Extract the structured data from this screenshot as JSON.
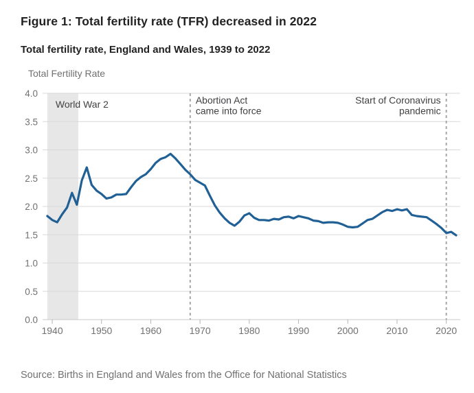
{
  "page": {
    "title": "Figure 1: Total fertility rate (TFR) decreased in 2022",
    "subtitle": "Total fertility rate, England and Wales, 1939 to 2022",
    "source": "Source: Births in England and Wales from the Office for National Statistics"
  },
  "chart_data": {
    "type": "line",
    "title": "Total fertility rate, England and Wales, 1939 to 2022",
    "y_axis_label": "Total Fertility Rate",
    "x_start": 1939,
    "x_end": 2022,
    "ylim": [
      0.0,
      4.0
    ],
    "grid": "horizontal",
    "legend": "none",
    "x_ticks": [
      1940,
      1950,
      1960,
      1970,
      1980,
      1990,
      2000,
      2010,
      2020
    ],
    "y_ticks": [
      0.0,
      0.5,
      1.0,
      1.5,
      2.0,
      2.5,
      3.0,
      3.5,
      4.0
    ],
    "y_tick_labels": [
      "0.0",
      "0.5",
      "1.0",
      "1.5",
      "2.0",
      "2.5",
      "3.0",
      "3.5",
      "4.0"
    ],
    "series": [
      {
        "name": "Total fertility rate",
        "start_year": 1939,
        "values": [
          1.83,
          1.76,
          1.72,
          1.86,
          1.98,
          2.24,
          2.03,
          2.46,
          2.69,
          2.38,
          2.28,
          2.22,
          2.14,
          2.16,
          2.21,
          2.21,
          2.22,
          2.34,
          2.45,
          2.52,
          2.57,
          2.66,
          2.77,
          2.84,
          2.87,
          2.93,
          2.85,
          2.75,
          2.65,
          2.57,
          2.47,
          2.42,
          2.37,
          2.19,
          2.02,
          1.89,
          1.79,
          1.71,
          1.66,
          1.73,
          1.84,
          1.88,
          1.8,
          1.76,
          1.76,
          1.75,
          1.78,
          1.77,
          1.81,
          1.82,
          1.79,
          1.83,
          1.81,
          1.79,
          1.75,
          1.74,
          1.71,
          1.72,
          1.72,
          1.71,
          1.68,
          1.64,
          1.63,
          1.64,
          1.7,
          1.76,
          1.78,
          1.84,
          1.9,
          1.94,
          1.92,
          1.95,
          1.93,
          1.95,
          1.85,
          1.83,
          1.82,
          1.81,
          1.75,
          1.69,
          1.62,
          1.53,
          1.55,
          1.49
        ]
      }
    ],
    "annotations": {
      "band": {
        "label": "World War 2",
        "from_year": 1939,
        "to_year": 1945,
        "color": "#e7e7e7"
      },
      "vlines": [
        {
          "year": 1968,
          "align": "left",
          "label_lines": [
            "Abortion Act",
            "came into force"
          ]
        },
        {
          "year": 2020,
          "align": "right",
          "label_lines": [
            "Start of Coronavirus",
            "pandemic"
          ]
        }
      ]
    },
    "colors": {
      "line": "#206095",
      "gridline": "#d9d9d9",
      "axis_line": "#c8c8c8",
      "tick_mark": "#b3b3b3",
      "tick_label": "#707071",
      "annotation_text": "#414042",
      "dashed_line": "#a8a8a8",
      "heading_text": "#222222"
    }
  }
}
